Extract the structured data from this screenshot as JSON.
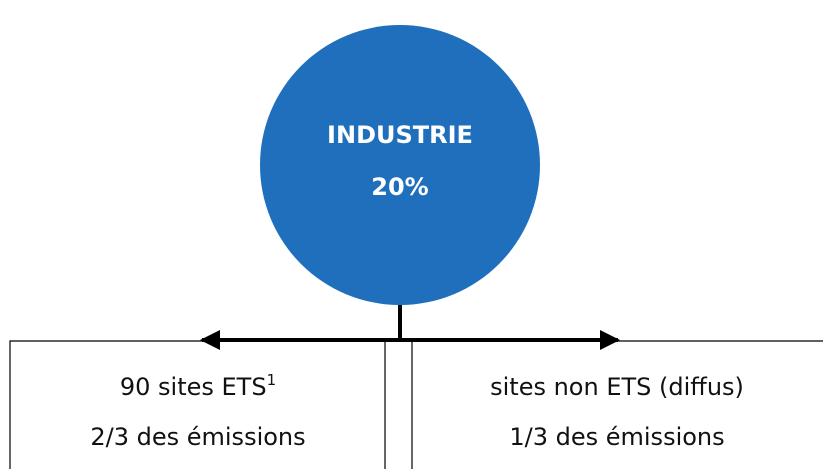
{
  "nodes": [
    {
      "label": "INDUSTRIE",
      "value": "20%"
    },
    {
      "label": "90 sites ETS",
      "note": "1",
      "detail": "2/3 des émissions"
    },
    {
      "label": "sites non ETS (diffus)",
      "detail": "1/3 des émissions"
    }
  ]
}
